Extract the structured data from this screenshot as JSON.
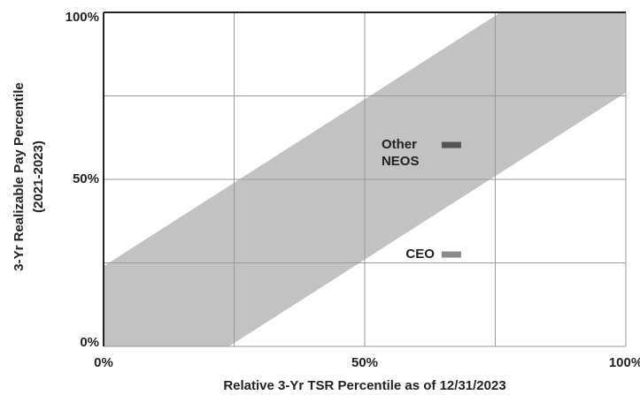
{
  "chart_data": {
    "type": "scatter",
    "xlabel": "Relative 3-Yr TSR Percentile as of 12/31/2023",
    "ylabel": [
      "3-Yr Realizable Pay Percentile",
      "(2021-2023)"
    ],
    "xlim": [
      0,
      100
    ],
    "ylim": [
      0,
      100
    ],
    "xticks": [
      {
        "value": 0,
        "label": "0%"
      },
      {
        "value": 50,
        "label": "50%"
      },
      {
        "value": 100,
        "label": "100%"
      }
    ],
    "yticks": [
      {
        "value": 0,
        "label": "0%"
      },
      {
        "value": 50,
        "label": "50%"
      },
      {
        "value": 100,
        "label": "100%"
      }
    ],
    "xgrid": [
      0,
      25,
      50,
      75,
      100
    ],
    "ygrid": [
      0,
      25,
      50,
      75,
      100
    ],
    "grid": true,
    "band": {
      "x": [
        0,
        0,
        76,
        100,
        100,
        24
      ],
      "y": [
        0,
        24,
        100,
        100,
        76,
        0
      ],
      "color": "#c2c2c2"
    },
    "series": [
      {
        "name": "Other NEOS",
        "color": "#555555",
        "x": [
          66.6
        ],
        "values": [
          60.3
        ]
      },
      {
        "name": "CEO",
        "color": "#8a8a8a",
        "x": [
          66.6
        ],
        "values": [
          27.5
        ]
      }
    ]
  }
}
